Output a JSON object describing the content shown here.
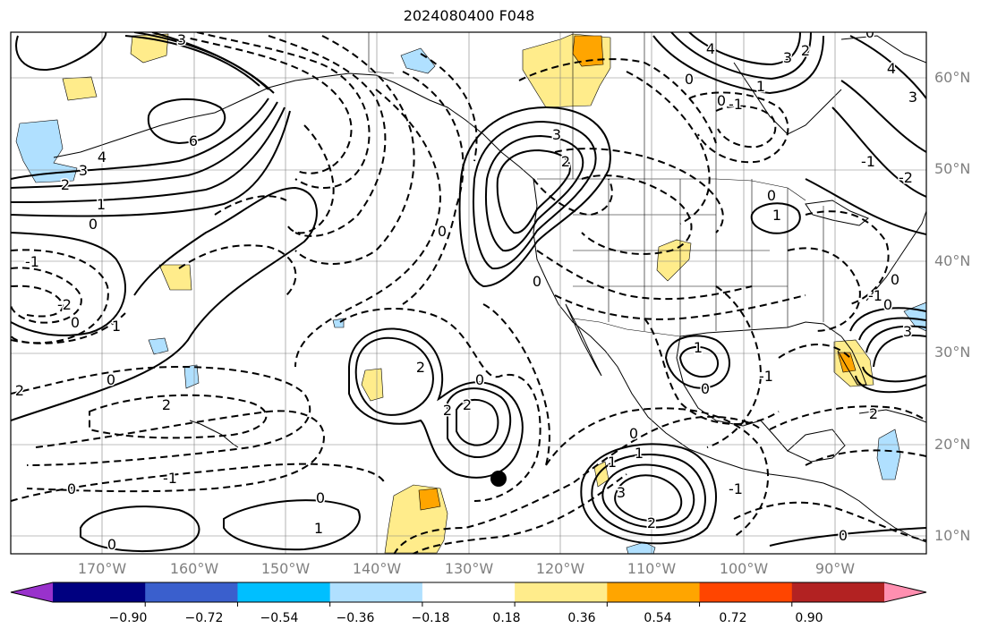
{
  "title": "2024080400 F048",
  "lat_labels": [
    "60°N",
    "50°N",
    "40°N",
    "30°N",
    "20°N",
    "10°N"
  ],
  "lon_labels": [
    "170°W",
    "160°W",
    "150°W",
    "140°W",
    "130°W",
    "120°W",
    "110°W",
    "100°W",
    "90°W"
  ],
  "colorbar": {
    "ticks": [
      "−0.90",
      "−0.72",
      "−0.54",
      "−0.36",
      "−0.18",
      "0.18",
      "0.36",
      "0.54",
      "0.72",
      "0.90"
    ],
    "colors": [
      "#9932cc",
      "#000080",
      "#3a5fcd",
      "#00bfff",
      "#b0e0ff",
      "#ffffff",
      "#ffec8b",
      "#ffa500",
      "#ff4500",
      "#b22222",
      "#ff8fb0"
    ]
  },
  "contour_labels": [
    {
      "text": "3"
    },
    {
      "text": "4"
    },
    {
      "text": "6"
    },
    {
      "text": "4"
    },
    {
      "text": "3"
    },
    {
      "text": "2"
    },
    {
      "text": "1"
    },
    {
      "text": "0"
    },
    {
      "text": "-1"
    },
    {
      "text": "-2"
    },
    {
      "text": "0"
    },
    {
      "text": "1"
    },
    {
      "text": "0"
    },
    {
      "text": "2"
    },
    {
      "text": "2"
    },
    {
      "text": "-1"
    },
    {
      "text": "0"
    },
    {
      "text": "0"
    },
    {
      "text": "0"
    },
    {
      "text": "1"
    },
    {
      "text": "2"
    },
    {
      "text": "2"
    },
    {
      "text": "2"
    },
    {
      "text": "0"
    },
    {
      "text": "0"
    },
    {
      "text": "0"
    },
    {
      "text": "3"
    },
    {
      "text": "2"
    },
    {
      "text": "0"
    },
    {
      "text": "3"
    },
    {
      "text": "2"
    },
    {
      "text": "1"
    },
    {
      "text": "0"
    },
    {
      "text": "-1"
    },
    {
      "text": "0"
    },
    {
      "text": "0"
    },
    {
      "text": "4"
    },
    {
      "text": "3"
    },
    {
      "text": "-1"
    },
    {
      "text": "-2"
    },
    {
      "text": "0"
    },
    {
      "text": "-1"
    },
    {
      "text": "0"
    },
    {
      "text": "1"
    },
    {
      "text": "0"
    },
    {
      "text": "1"
    },
    {
      "text": "0"
    },
    {
      "text": "3"
    },
    {
      "text": "1"
    },
    {
      "text": "2"
    },
    {
      "text": "-1"
    },
    {
      "text": "0"
    },
    {
      "text": "1"
    },
    {
      "text": "3"
    },
    {
      "text": "2"
    },
    {
      "text": "-1"
    }
  ],
  "storm_marker": "tropical-cyclone-position"
}
